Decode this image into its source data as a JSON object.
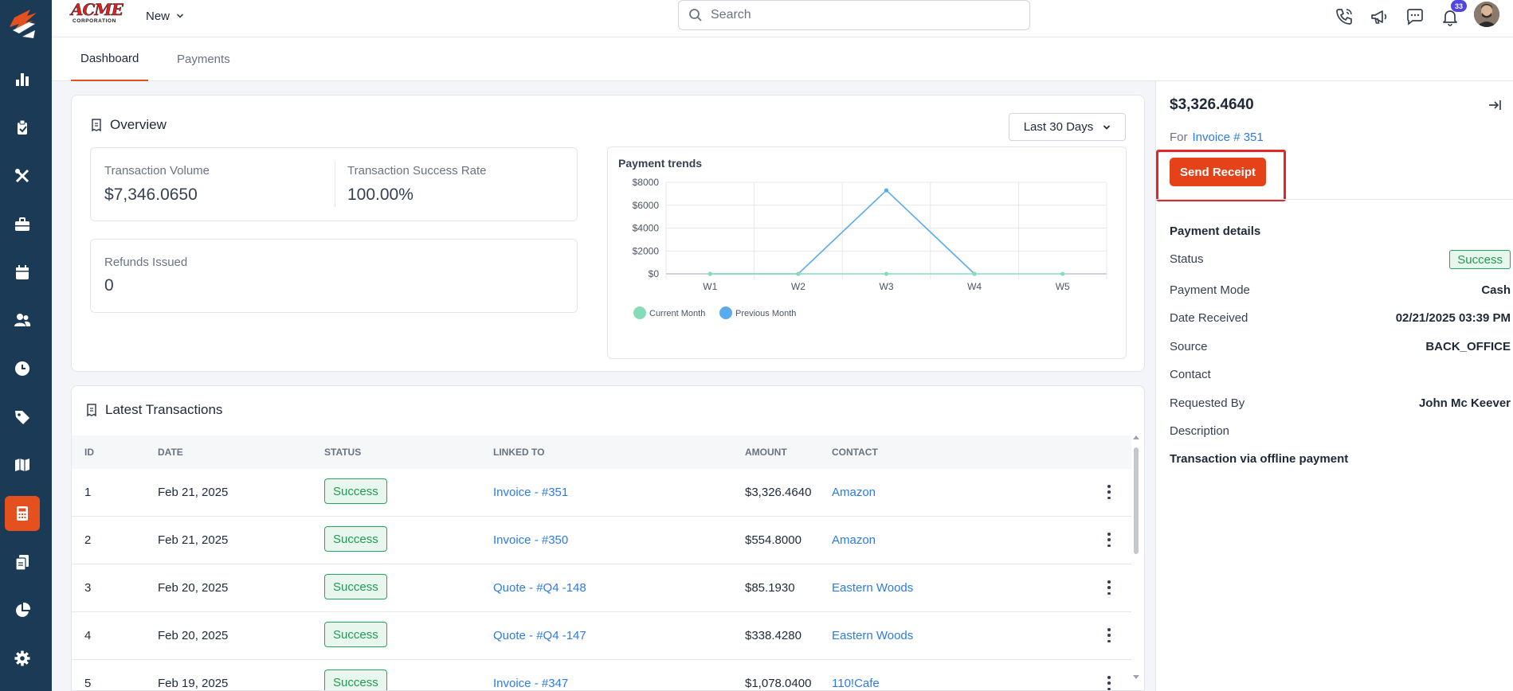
{
  "brand": {
    "name": "ACME",
    "sub": "CORPORATION"
  },
  "topbar": {
    "new_label": "New",
    "search_placeholder": "Search",
    "notification_count": "33"
  },
  "sidebar": {
    "items": [
      {
        "icon": "bar-chart-icon"
      },
      {
        "icon": "clipboard-icon"
      },
      {
        "icon": "tools-icon"
      },
      {
        "icon": "briefcase-icon"
      },
      {
        "icon": "calendar-icon"
      },
      {
        "icon": "users-icon"
      },
      {
        "icon": "clock-icon"
      },
      {
        "icon": "tag-icon"
      },
      {
        "icon": "map-icon"
      },
      {
        "icon": "calculator-icon",
        "active": true
      },
      {
        "icon": "documents-icon"
      },
      {
        "icon": "pie-chart-icon"
      },
      {
        "icon": "gear-icon"
      }
    ]
  },
  "tabs": [
    {
      "label": "Dashboard",
      "active": true
    },
    {
      "label": "Payments",
      "active": false
    }
  ],
  "overview": {
    "title": "Overview",
    "range": "Last 30 Days",
    "transaction_volume_label": "Transaction Volume",
    "transaction_volume_value": "$7,346.0650",
    "success_rate_label": "Transaction Success Rate",
    "success_rate_value": "100.00%",
    "refunds_label": "Refunds Issued",
    "refunds_value": "0"
  },
  "chart_data": {
    "type": "line",
    "title": "Payment trends",
    "categories": [
      "W1",
      "W2",
      "W3",
      "W4",
      "W5"
    ],
    "y_ticks": [
      "$0",
      "$2000",
      "$4000",
      "$6000",
      "$8000"
    ],
    "ylim": [
      0,
      8000
    ],
    "grid": true,
    "legend_position": "bottom-left",
    "series": [
      {
        "name": "Current Month",
        "values": [
          0,
          0,
          0,
          0,
          0
        ],
        "color": "#86dbb8"
      },
      {
        "name": "Previous Month",
        "values": [
          0,
          0,
          7300,
          0,
          null
        ],
        "color": "#5aaaf0"
      }
    ]
  },
  "transactions": {
    "title": "Latest Transactions",
    "columns": {
      "id": "ID",
      "date": "DATE",
      "status": "STATUS",
      "linked": "LINKED TO",
      "amount": "AMOUNT",
      "contact": "CONTACT"
    },
    "rows": [
      {
        "id": "1",
        "date": "Feb 21, 2025",
        "status": "Success",
        "linked": "Invoice - #351",
        "amount": "$3,326.4640",
        "contact": "Amazon"
      },
      {
        "id": "2",
        "date": "Feb 21, 2025",
        "status": "Success",
        "linked": "Invoice - #350",
        "amount": "$554.8000",
        "contact": "Amazon"
      },
      {
        "id": "3",
        "date": "Feb 20, 2025",
        "status": "Success",
        "linked": "Quote - #Q4 -148",
        "amount": "$85.1930",
        "contact": "Eastern Woods"
      },
      {
        "id": "4",
        "date": "Feb 20, 2025",
        "status": "Success",
        "linked": "Quote - #Q4 -147",
        "amount": "$338.4280",
        "contact": "Eastern Woods"
      },
      {
        "id": "5",
        "date": "Feb 19, 2025",
        "status": "Success",
        "linked": "Invoice - #347",
        "amount": "$1,078.0400",
        "contact": "110!Cafe"
      }
    ]
  },
  "detail": {
    "amount": "$3,326.4640",
    "for_label": "For",
    "invoice_link": "Invoice # 351",
    "send_receipt": "Send Receipt",
    "section_title": "Payment details",
    "status_label": "Status",
    "status_value": "Success",
    "mode_label": "Payment Mode",
    "mode_value": "Cash",
    "date_label": "Date Received",
    "date_value": "02/21/2025 03:39 PM",
    "source_label": "Source",
    "source_value": "BACK_OFFICE",
    "contact_label": "Contact",
    "requested_label": "Requested By",
    "requested_value": "John Mc Keever",
    "description_label": "Description",
    "description_value": "Transaction via offline payment"
  }
}
